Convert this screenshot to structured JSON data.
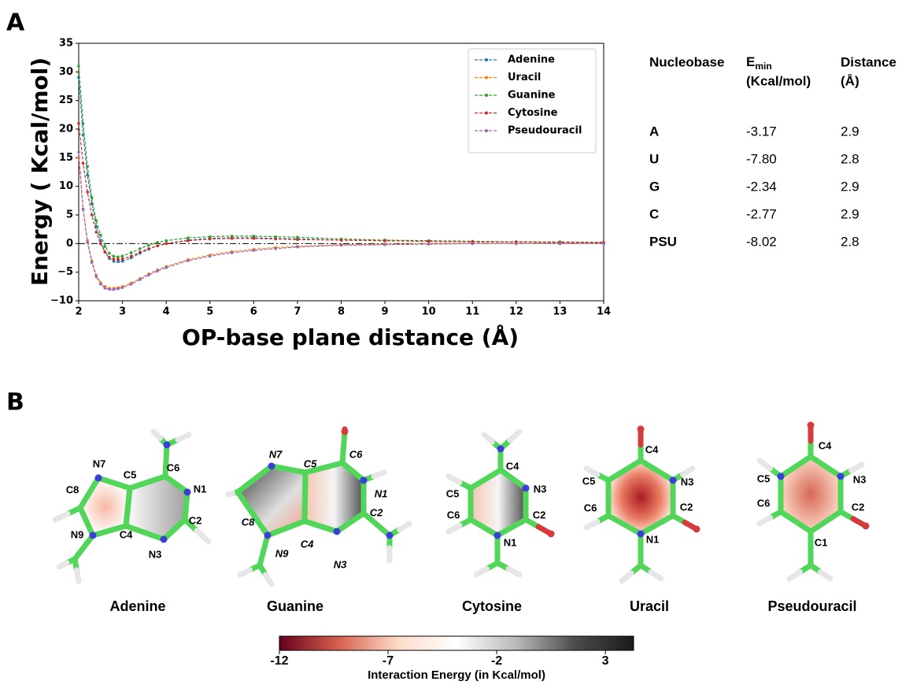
{
  "panel_labels": [
    "A",
    "B"
  ],
  "chart_data": {
    "type": "line",
    "ylabel": "Energy ( Kcal/mol)",
    "xlabel": "OP-base plane distance (Å)",
    "x": [
      2,
      2.1,
      2.2,
      2.3,
      2.4,
      2.5,
      2.6,
      2.7,
      2.8,
      2.9,
      3,
      3.2,
      3.4,
      3.6,
      3.8,
      4,
      4.5,
      5,
      5.5,
      6,
      6.5,
      7,
      8,
      9,
      10,
      11,
      12,
      13,
      14
    ],
    "series": [
      {
        "name": "Adenine",
        "color": "#1f77b4",
        "values": [
          29,
          19,
          12,
          7,
          3,
          0.5,
          -1.5,
          -2.6,
          -3.1,
          -3.17,
          -3.1,
          -2.5,
          -1.7,
          -1,
          -0.4,
          0,
          0.6,
          0.9,
          1,
          1,
          0.9,
          0.8,
          0.6,
          0.5,
          0.4,
          0.3,
          0.3,
          0.2,
          0.2
        ]
      },
      {
        "name": "Uracil",
        "color": "#ff7f0e",
        "values": [
          15,
          6,
          0.5,
          -3,
          -5.5,
          -6.8,
          -7.5,
          -7.8,
          -7.8,
          -7.7,
          -7.5,
          -6.9,
          -6.1,
          -5.3,
          -4.6,
          -4,
          -2.8,
          -2,
          -1.4,
          -1,
          -0.7,
          -0.5,
          -0.2,
          -0.1,
          0,
          0,
          0,
          0,
          0
        ]
      },
      {
        "name": "Guanine",
        "color": "#2ca02c",
        "values": [
          31,
          21,
          13.5,
          8,
          4,
          1.5,
          -0.5,
          -1.7,
          -2.25,
          -2.34,
          -2.2,
          -1.6,
          -0.9,
          -0.3,
          0.2,
          0.5,
          1,
          1.2,
          1.3,
          1.3,
          1.2,
          1.1,
          0.8,
          0.6,
          0.5,
          0.4,
          0.3,
          0.3,
          0.2
        ]
      },
      {
        "name": "Cytosine",
        "color": "#d62728",
        "values": [
          21,
          14,
          9,
          5,
          2,
          0,
          -1.5,
          -2.4,
          -2.75,
          -2.77,
          -2.7,
          -2.2,
          -1.5,
          -0.9,
          -0.4,
          0,
          0.5,
          0.8,
          0.9,
          0.9,
          0.8,
          0.7,
          0.6,
          0.5,
          0.4,
          0.3,
          0.3,
          0.2,
          0.2
        ]
      },
      {
        "name": "Pseudouracil",
        "color": "#9467bd",
        "values": [
          16,
          6,
          0.2,
          -3.3,
          -5.8,
          -7.1,
          -7.8,
          -8,
          -8.02,
          -7.9,
          -7.7,
          -7.1,
          -6.3,
          -5.5,
          -4.8,
          -4.2,
          -3,
          -2.2,
          -1.6,
          -1.2,
          -0.9,
          -0.6,
          -0.3,
          -0.2,
          -0.1,
          0,
          0,
          0,
          0
        ]
      }
    ],
    "xlim": [
      2,
      14
    ],
    "xticks": [
      2,
      3,
      4,
      5,
      6,
      7,
      8,
      9,
      10,
      11,
      12,
      13,
      14
    ],
    "ylim": [
      -10,
      35
    ],
    "yticks": [
      {
        "value": -10,
        "label": "−10"
      },
      {
        "value": -5,
        "label": "−5"
      },
      0,
      5,
      10,
      15,
      20,
      25,
      30,
      35
    ],
    "legend": "upper right",
    "grid": false
  },
  "table": {
    "header": {
      "col0": "Nucleobase",
      "col1": {
        "symbol": "E",
        "subscript": "min",
        "unit": "(Kcal/mol)"
      },
      "col2": {
        "label": "Distance",
        "unit": "(Å)"
      }
    },
    "rows": [
      [
        "A",
        "-3.17",
        "2.9"
      ],
      [
        "U",
        "-7.80",
        "2.8"
      ],
      [
        "G",
        "-2.34",
        "2.9"
      ],
      [
        "C",
        "-2.77",
        "2.9"
      ],
      [
        "PSU",
        "-8.02",
        "2.8"
      ]
    ]
  },
  "molecules": [
    {
      "name": "Adenine",
      "atoms": [
        "N7",
        "C5",
        "C6",
        "N1",
        "C8",
        "C2",
        "N9",
        "C4",
        "N3"
      ]
    },
    {
      "name": "Guanine",
      "atoms": [
        "N7",
        "C5",
        "C6",
        "N1",
        "C8",
        "C2",
        "N9",
        "C4",
        "N3"
      ]
    },
    {
      "name": "Cytosine",
      "atoms": [
        "C4",
        "N3",
        "C5",
        "C2",
        "C6",
        "N1"
      ]
    },
    {
      "name": "Uracil",
      "atoms": [
        "C4",
        "C5",
        "N3",
        "C2",
        "C6",
        "N1"
      ]
    },
    {
      "name": "Pseudouracil",
      "atoms": [
        "C4",
        "C5",
        "N3",
        "C6",
        "C2",
        "C1"
      ]
    }
  ],
  "colorbar": {
    "label": "Interaction Energy (in Kcal/mol)",
    "lim": [
      -12,
      4.3
    ],
    "ticks": [
      -12,
      -7,
      -2,
      3
    ],
    "colormap": [
      "#67001f",
      "#d6604d",
      "#fddbc7",
      "#ffffff",
      "#bababa",
      "#4d4d4d",
      "#1a1a1a"
    ]
  }
}
